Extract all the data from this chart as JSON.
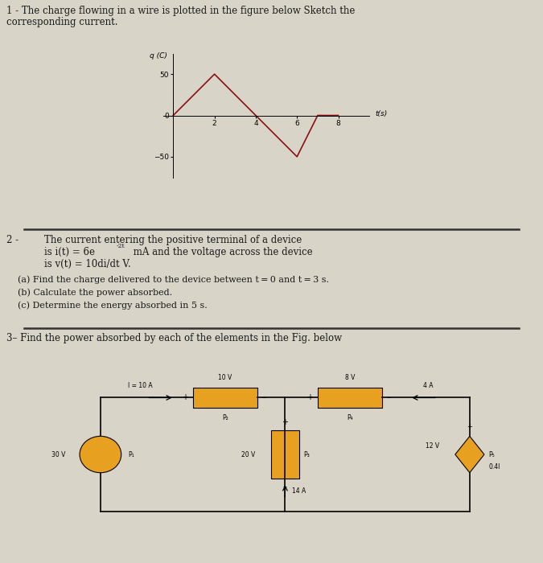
{
  "bg_color": "#d8d4c8",
  "text_color": "#1a1a1a",
  "title1_line1": "1 - The charge flowing in a wire is plotted in the figure below Sketch the",
  "title1_line2": "corresponding current.",
  "title2_label": "2 -",
  "title2_text1": "The current entering the positive terminal of a device",
  "title2_text2a": "is i(t) = 6e",
  "title2_sup": "-2t",
  "title2_text2b": " mA and the voltage across the device",
  "title2_text3": "is v(t) = 10di/dt V.",
  "q2a": "(a) Find the charge delivered to the device between t = 0 and t = 3 s.",
  "q2b": "(b) Calculate the power absorbed.",
  "q2c": "(c) Determine the energy absorbed in 5 s.",
  "title3": "3– Find the power absorbed by each of the elements in the Fig. below",
  "graph_ylabel": "q (C)",
  "graph_xlabel": "t(s)",
  "graph_x": [
    0,
    2,
    4,
    6,
    7,
    8
  ],
  "graph_y": [
    0,
    50,
    0,
    -50,
    0,
    0
  ],
  "graph_yticks": [
    -50,
    0,
    50
  ],
  "graph_xticks": [
    2,
    4,
    6,
    8
  ],
  "graph_color": "#8B1010",
  "separator_color": "#333333",
  "box_color": "#e8a020",
  "circle_color": "#e8a020",
  "diamond_color": "#e8a020",
  "wire_color": "#111111",
  "font_size_title": 8.5,
  "font_size_body": 8.0,
  "font_size_small": 7.0
}
